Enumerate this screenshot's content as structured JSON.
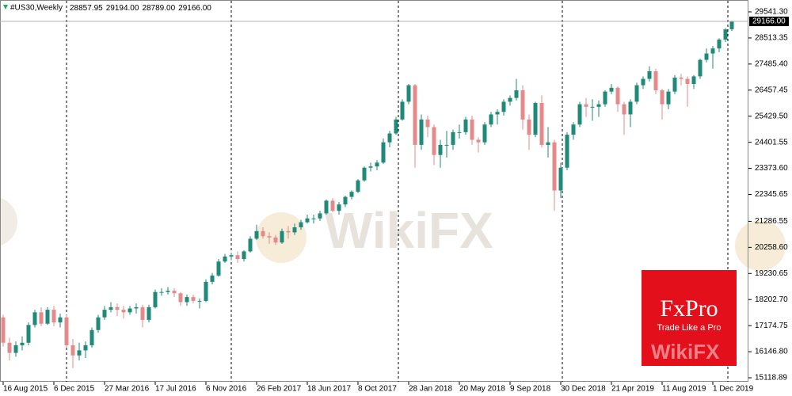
{
  "chart_data": {
    "type": "candlestick",
    "title": "#US30,Weekly",
    "last_ohlc_labels": [
      "28857.95",
      "29194.00",
      "28789.00",
      "29166.00"
    ],
    "current_price": {
      "value": 29166,
      "label": "29166.00"
    },
    "up_color": "#1f8a7a",
    "down_color": "#e58a8a",
    "ylim": [
      14962.8,
      30009.6
    ],
    "yticks": [
      {
        "value": 29541.3,
        "label": "29541.30"
      },
      {
        "value": 28513.35,
        "label": "28513.35"
      },
      {
        "value": 27485.4,
        "label": "27485.40"
      },
      {
        "value": 26457.45,
        "label": "26457.45"
      },
      {
        "value": 25429.5,
        "label": "25429.50"
      },
      {
        "value": 24401.55,
        "label": "24401.55"
      },
      {
        "value": 23373.6,
        "label": "23373.60"
      },
      {
        "value": 22345.65,
        "label": "22345.65"
      },
      {
        "value": 21286.55,
        "label": "21286.55"
      },
      {
        "value": 20258.6,
        "label": "20258.60"
      },
      {
        "value": 19230.65,
        "label": "19230.65"
      },
      {
        "value": 18202.7,
        "label": "18202.70"
      },
      {
        "value": 17174.75,
        "label": "17174.75"
      },
      {
        "value": 16146.8,
        "label": "16146.80"
      },
      {
        "value": 15118.89,
        "label": "15118.89"
      }
    ],
    "categories": [
      "16 Aug 2015",
      null,
      null,
      null,
      null,
      null,
      null,
      null,
      "6 Dec 2015",
      null,
      null,
      null,
      null,
      null,
      null,
      null,
      "27 Mar 2016",
      null,
      null,
      null,
      null,
      null,
      null,
      null,
      "17 Jul 2016",
      null,
      null,
      null,
      null,
      null,
      null,
      null,
      "6 Nov 2016",
      null,
      null,
      null,
      null,
      null,
      null,
      null,
      "26 Feb 2017",
      null,
      null,
      null,
      null,
      null,
      null,
      null,
      "18 Jun 2017",
      null,
      null,
      null,
      null,
      null,
      null,
      null,
      "8 Oct 2017",
      null,
      null,
      null,
      null,
      null,
      null,
      null,
      "28 Jan 2018",
      null,
      null,
      null,
      null,
      null,
      null,
      null,
      "20 May 2018",
      null,
      null,
      null,
      null,
      null,
      null,
      null,
      "9 Sep 2018",
      null,
      null,
      null,
      null,
      null,
      null,
      null,
      "30 Dec 2018",
      null,
      null,
      null,
      null,
      null,
      null,
      null,
      "21 Apr 2019",
      null,
      null,
      null,
      null,
      null,
      null,
      null,
      "11 Aug 2019",
      null,
      null,
      null,
      null,
      null,
      null,
      null,
      "1 Dec 2019",
      null,
      null,
      null
    ],
    "candles": [
      [
        17500,
        17600,
        16350,
        16500
      ],
      [
        16500,
        16700,
        15800,
        16100
      ],
      [
        16100,
        16550,
        15950,
        16400
      ],
      [
        16400,
        16750,
        16200,
        16500
      ],
      [
        16500,
        17300,
        16400,
        17200
      ],
      [
        17200,
        17800,
        17100,
        17700
      ],
      [
        17700,
        17900,
        17150,
        17250
      ],
      [
        17250,
        17900,
        17200,
        17800
      ],
      [
        17800,
        17950,
        17150,
        17300
      ],
      [
        17300,
        17650,
        17100,
        17500
      ],
      [
        17500,
        17600,
        16300,
        16400
      ],
      [
        16400,
        16650,
        15500,
        16000
      ],
      [
        16000,
        16500,
        15800,
        16200
      ],
      [
        16200,
        16550,
        15900,
        16400
      ],
      [
        16400,
        17100,
        16300,
        17000
      ],
      [
        17000,
        17600,
        16900,
        17500
      ],
      [
        17500,
        17950,
        17400,
        17800
      ],
      [
        17800,
        18100,
        17700,
        17900
      ],
      [
        17900,
        18050,
        17550,
        17800
      ],
      [
        17800,
        17950,
        17450,
        17700
      ],
      [
        17700,
        17950,
        17600,
        17850
      ],
      [
        17850,
        18050,
        17650,
        17900
      ],
      [
        17900,
        18000,
        17100,
        17400
      ],
      [
        17400,
        18000,
        17300,
        17900
      ],
      [
        17900,
        18600,
        17850,
        18500
      ],
      [
        18500,
        18650,
        18350,
        18500
      ],
      [
        18500,
        18700,
        18400,
        18550
      ],
      [
        18550,
        18650,
        18300,
        18450
      ],
      [
        18450,
        18500,
        17950,
        18100
      ],
      [
        18100,
        18400,
        17950,
        18300
      ],
      [
        18300,
        18400,
        18050,
        18150
      ],
      [
        18150,
        18250,
        17850,
        18150
      ],
      [
        18150,
        19000,
        18100,
        18900
      ],
      [
        18900,
        19250,
        18800,
        19150
      ],
      [
        19150,
        19800,
        19100,
        19700
      ],
      [
        19700,
        20000,
        19650,
        19900
      ],
      [
        19900,
        20050,
        19750,
        19950
      ],
      [
        19950,
        20100,
        19650,
        19800
      ],
      [
        19800,
        20150,
        19700,
        20100
      ],
      [
        20100,
        20700,
        20050,
        20600
      ],
      [
        20600,
        21150,
        20550,
        20900
      ],
      [
        20900,
        21050,
        20600,
        20700
      ],
      [
        20700,
        20850,
        20400,
        20650
      ],
      [
        20650,
        20750,
        20350,
        20450
      ],
      [
        20450,
        21000,
        20400,
        20900
      ],
      [
        20900,
        21100,
        20600,
        20850
      ],
      [
        20850,
        21200,
        20750,
        21050
      ],
      [
        21050,
        21350,
        20950,
        21250
      ],
      [
        21250,
        21550,
        21200,
        21400
      ],
      [
        21400,
        21550,
        21200,
        21400
      ],
      [
        21400,
        21700,
        21300,
        21600
      ],
      [
        21600,
        22150,
        21550,
        22100
      ],
      [
        22100,
        22200,
        21650,
        21700
      ],
      [
        21700,
        22050,
        21550,
        21950
      ],
      [
        21950,
        22300,
        21850,
        22250
      ],
      [
        22250,
        22500,
        22150,
        22450
      ],
      [
        22450,
        22950,
        22400,
        22900
      ],
      [
        22900,
        23450,
        22850,
        23400
      ],
      [
        23400,
        23600,
        23250,
        23450
      ],
      [
        23450,
        23700,
        23300,
        23600
      ],
      [
        23600,
        24550,
        23550,
        24400
      ],
      [
        24400,
        24850,
        24200,
        24750
      ],
      [
        24750,
        25400,
        24700,
        25300
      ],
      [
        25300,
        26100,
        25250,
        26000
      ],
      [
        26000,
        26700,
        25900,
        26650
      ],
      [
        26650,
        26700,
        23400,
        24300
      ],
      [
        24300,
        25500,
        24100,
        25300
      ],
      [
        25300,
        25450,
        24600,
        25000
      ],
      [
        25000,
        25100,
        23500,
        23900
      ],
      [
        23900,
        24500,
        23400,
        24300
      ],
      [
        24300,
        24850,
        23800,
        24300
      ],
      [
        24300,
        24900,
        24100,
        24800
      ],
      [
        24800,
        25100,
        24550,
        24800
      ],
      [
        24800,
        25400,
        24700,
        25300
      ],
      [
        25300,
        25450,
        24300,
        24500
      ],
      [
        24500,
        24600,
        24000,
        24400
      ],
      [
        24400,
        25200,
        24300,
        25100
      ],
      [
        25100,
        25600,
        25000,
        25500
      ],
      [
        25500,
        25700,
        25100,
        25600
      ],
      [
        25600,
        26100,
        25450,
        26000
      ],
      [
        26000,
        26250,
        25850,
        26150
      ],
      [
        26150,
        26900,
        26050,
        26450
      ],
      [
        26450,
        26650,
        24900,
        25300
      ],
      [
        25300,
        25500,
        24100,
        24700
      ],
      [
        24700,
        26000,
        24600,
        25950
      ],
      [
        25950,
        26250,
        24200,
        24300
      ],
      [
        24300,
        25000,
        23800,
        24400
      ],
      [
        24400,
        24500,
        21700,
        22500
      ],
      [
        22500,
        23600,
        22200,
        23400
      ],
      [
        23400,
        24800,
        23300,
        24700
      ],
      [
        24700,
        25200,
        24500,
        25100
      ],
      [
        25100,
        26000,
        25000,
        25900
      ],
      [
        25900,
        26150,
        25400,
        25800
      ],
      [
        25800,
        26100,
        25250,
        25800
      ],
      [
        25800,
        26050,
        25400,
        25900
      ],
      [
        25900,
        26450,
        25800,
        26400
      ],
      [
        26400,
        26700,
        26300,
        26550
      ],
      [
        26550,
        26600,
        25600,
        25900
      ],
      [
        25900,
        26000,
        24700,
        25500
      ],
      [
        25500,
        26100,
        25000,
        26000
      ],
      [
        26000,
        26750,
        25900,
        26650
      ],
      [
        26650,
        27000,
        26500,
        26900
      ],
      [
        26900,
        27400,
        26800,
        27200
      ],
      [
        27200,
        27300,
        26300,
        26450
      ],
      [
        26450,
        26500,
        25300,
        25900
      ],
      [
        25900,
        26500,
        25700,
        26400
      ],
      [
        26400,
        27050,
        26300,
        26950
      ],
      [
        26950,
        27100,
        26650,
        26900
      ],
      [
        26900,
        27000,
        25800,
        26700
      ],
      [
        26700,
        27050,
        26500,
        27000
      ],
      [
        27000,
        27700,
        26900,
        27650
      ],
      [
        27650,
        28100,
        27550,
        27900
      ],
      [
        27900,
        28200,
        27300,
        28100
      ],
      [
        28100,
        28500,
        27950,
        28450
      ],
      [
        28450,
        28900,
        28350,
        28850
      ],
      [
        28857.95,
        29194,
        28789,
        29166
      ]
    ]
  },
  "overlay": {
    "watermark": "WikiFX",
    "logo": "FxPro",
    "tagline": "Trade Like a Pro"
  }
}
